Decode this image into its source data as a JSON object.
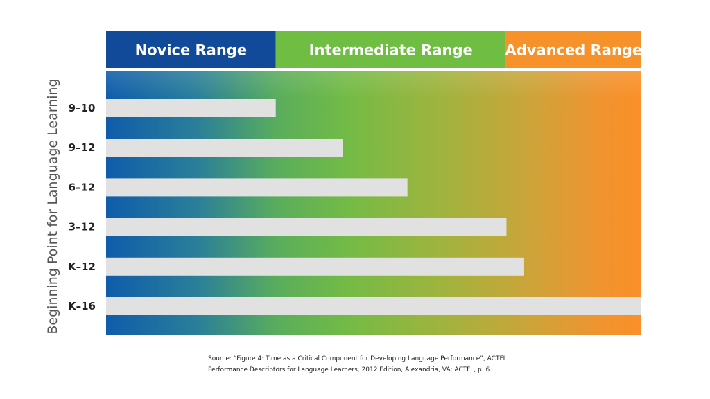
{
  "chart_data": {
    "type": "bar",
    "orientation": "horizontal",
    "ylabel": "Beginning Point for Language Learning",
    "ranges": [
      {
        "label": "Novice Range",
        "color": "#124a9a",
        "start": 0,
        "end": 0.317
      },
      {
        "label": "Intermediate Range",
        "color": "#6fbd43",
        "start": 0.317,
        "end": 0.747
      },
      {
        "label": "Advanced Range",
        "color": "#f7922a",
        "start": 0.747,
        "end": 1.0
      }
    ],
    "categories": [
      "9–10",
      "9–12",
      "6–12",
      "3–12",
      "K–12",
      "K–16"
    ],
    "values": [
      0.317,
      0.442,
      0.563,
      0.748,
      0.781,
      1.0
    ],
    "xlim": [
      0,
      1
    ],
    "bar_color": "#e1e1e1"
  },
  "source": {
    "line1": "Source: “Figure 4: Time as a Critical Component for Developing Language Performance”, ACTFL",
    "line2": "Performance Descriptors for Language Learners, 2012 Edition, Alexandria, VA: ACTFL, p. 6."
  }
}
